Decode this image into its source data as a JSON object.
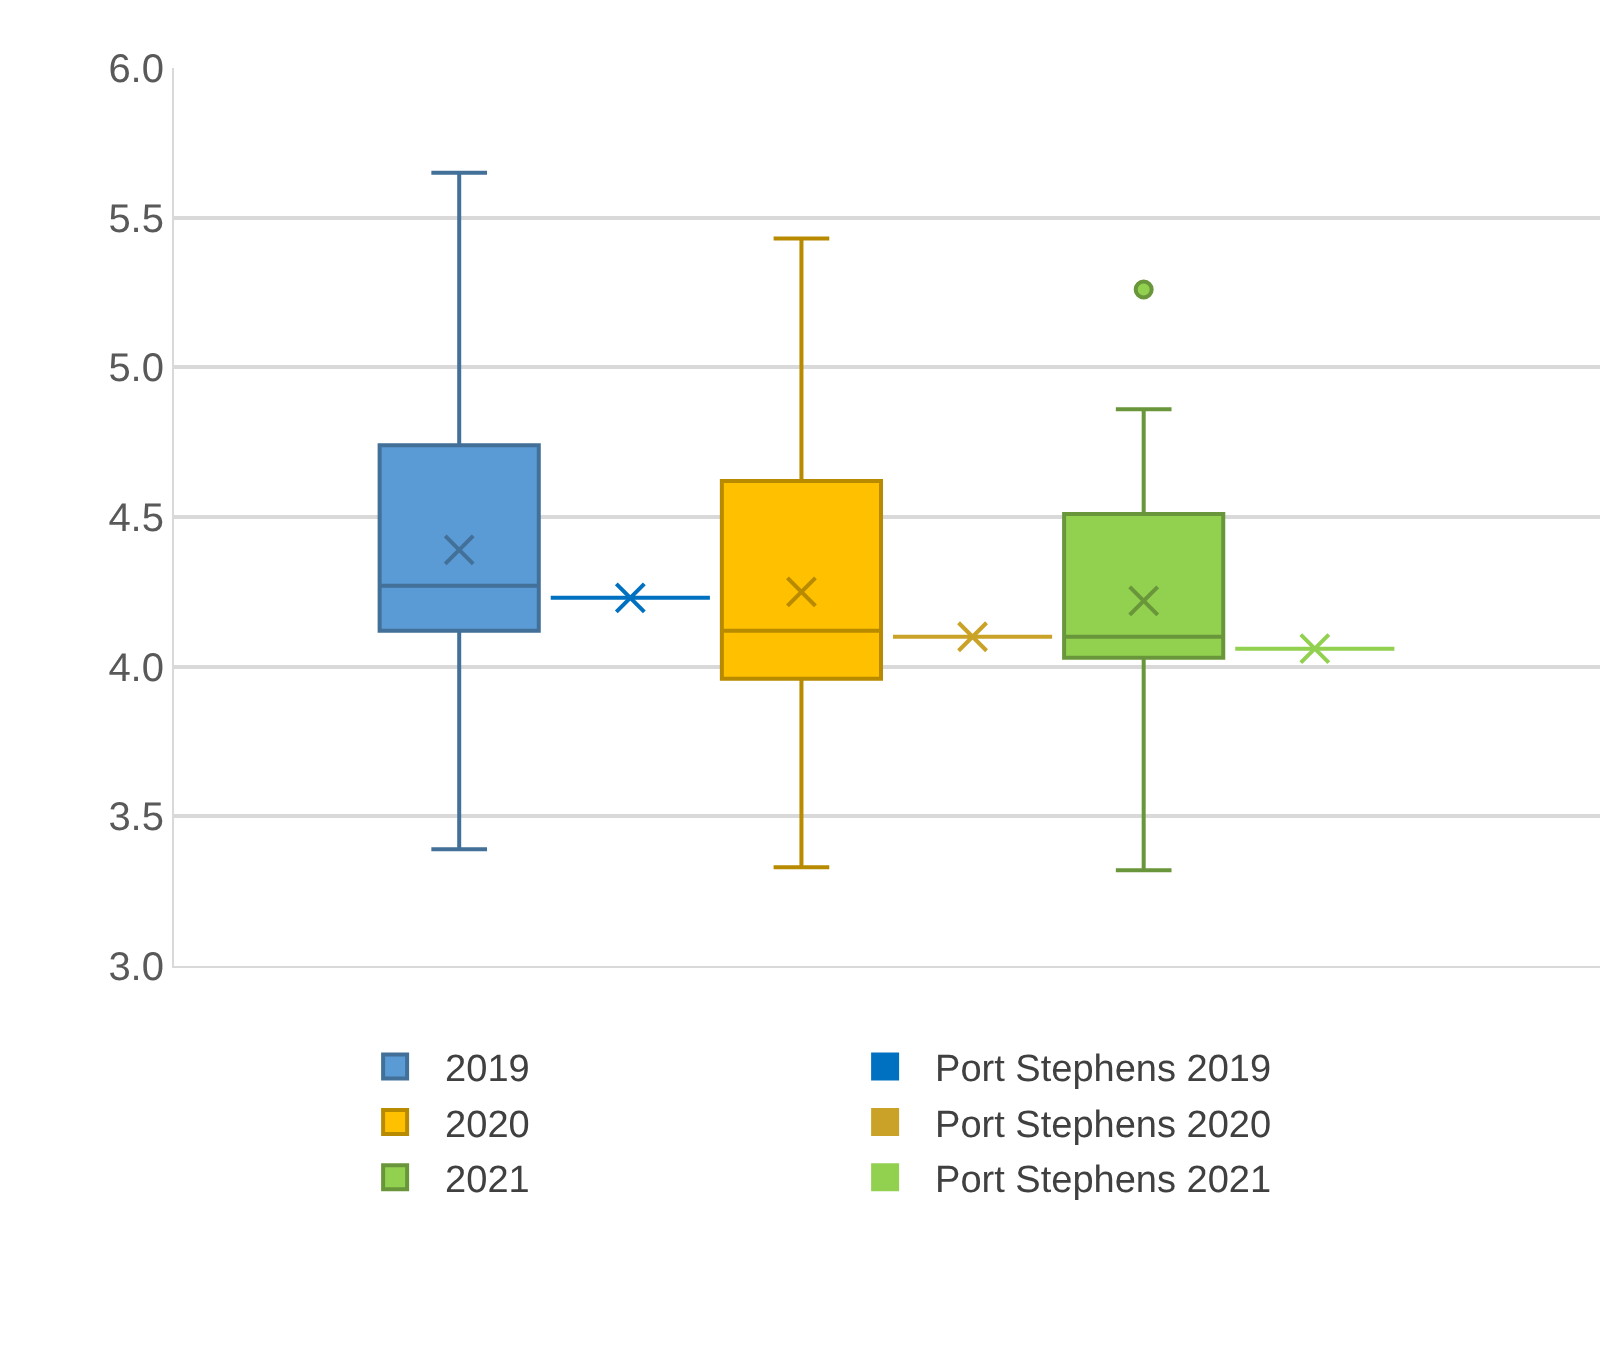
{
  "chart_data": {
    "type": "box",
    "categories": [
      null
    ],
    "series": [
      {
        "name": "2019",
        "color": "#5b9bd5",
        "boxes": [
          {
            "low": 3.39,
            "q1": 4.12,
            "median": 4.27,
            "q3": 4.74,
            "high": 5.65,
            "mean": 4.39
          }
        ]
      },
      {
        "name": "Port Stephens 2019",
        "color": "#0070c0",
        "boxes": [
          {
            "low": 4.23,
            "q1": 4.23,
            "median": 4.23,
            "q3": 4.23,
            "high": 4.23,
            "mean": 4.23
          }
        ]
      },
      {
        "name": "2020",
        "color": "#ffc000",
        "boxes": [
          {
            "low": 3.33,
            "q1": 3.96,
            "median": 4.12,
            "q3": 4.62,
            "high": 5.43,
            "mean": 4.25
          }
        ]
      },
      {
        "name": "Port Stephens 2020",
        "color": "#c9a227",
        "boxes": [
          {
            "low": 4.1,
            "q1": 4.1,
            "median": 4.1,
            "q3": 4.1,
            "high": 4.1,
            "mean": 4.1
          }
        ]
      },
      {
        "name": "2021",
        "color": "#92d050",
        "boxes": [
          {
            "low": 3.32,
            "q1": 4.03,
            "median": 4.1,
            "q3": 4.51,
            "high": 4.86,
            "mean": 4.22,
            "outliers": [
              5.26
            ]
          }
        ]
      },
      {
        "name": "Port Stephens 2021",
        "color": "#92d050",
        "boxes": [
          {
            "low": 4.06,
            "q1": 4.06,
            "median": 4.06,
            "q3": 4.06,
            "high": 4.06,
            "mean": 4.06
          }
        ]
      }
    ],
    "ylim": [
      3,
      6
    ],
    "yticks": [
      {
        "value": 3,
        "label": "3.0"
      },
      {
        "value": 3.5,
        "label": "3.5"
      },
      {
        "value": 4,
        "label": "4.0"
      },
      {
        "value": 4.5,
        "label": "4.5"
      },
      {
        "value": 5,
        "label": "5.0"
      },
      {
        "value": 5.5,
        "label": "5.5"
      },
      {
        "value": 6,
        "label": "6.0"
      }
    ],
    "grid": "y",
    "legend": "bottom",
    "marker": "cross",
    "tick_labels": "y"
  }
}
